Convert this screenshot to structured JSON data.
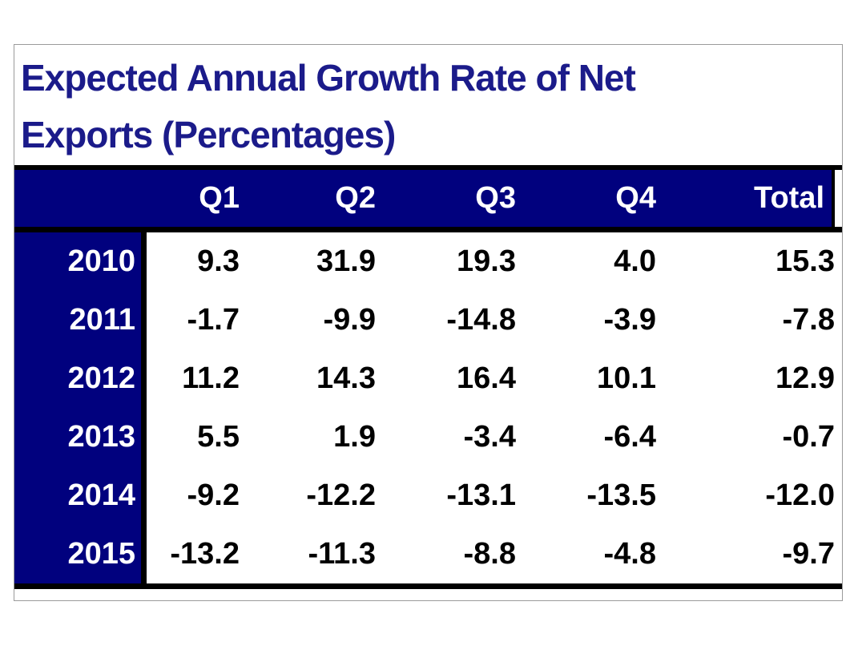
{
  "title": "Expected Annual Growth Rate of Net Exports (Percentages)",
  "title_lines": {
    "line1": "Expected Annual Growth Rate of Net",
    "line2": "Exports (Percentages)"
  },
  "colors": {
    "header_bg": "#01017E",
    "title_text": "#1B1B8A",
    "header_text": "#FFFFFF",
    "value_text": "#000000",
    "rule": "#000000",
    "outer_border": "#9B9B9B"
  },
  "chart_data": {
    "type": "table",
    "title": "Expected Annual Growth Rate of Net Exports (Percentages)",
    "row_header_label": "",
    "columns": [
      "Q1",
      "Q2",
      "Q3",
      "Q4",
      "Total"
    ],
    "rows": [
      {
        "year": "2010",
        "values": [
          "9.3",
          "31.9",
          "19.3",
          "4.0",
          "15.3"
        ]
      },
      {
        "year": "2011",
        "values": [
          "-1.7",
          "-9.9",
          "-14.8",
          "-3.9",
          "-7.8"
        ]
      },
      {
        "year": "2012",
        "values": [
          "11.2",
          "14.3",
          "16.4",
          "10.1",
          "12.9"
        ]
      },
      {
        "year": "2013",
        "values": [
          "5.5",
          "1.9",
          "-3.4",
          "-6.4",
          "-0.7"
        ]
      },
      {
        "year": "2014",
        "values": [
          "-9.2",
          "-12.2",
          "-13.1",
          "-13.5",
          "-12.0"
        ]
      },
      {
        "year": "2015",
        "values": [
          "-13.2",
          "-11.3",
          "-8.8",
          "-4.8",
          "-9.7"
        ]
      }
    ]
  }
}
